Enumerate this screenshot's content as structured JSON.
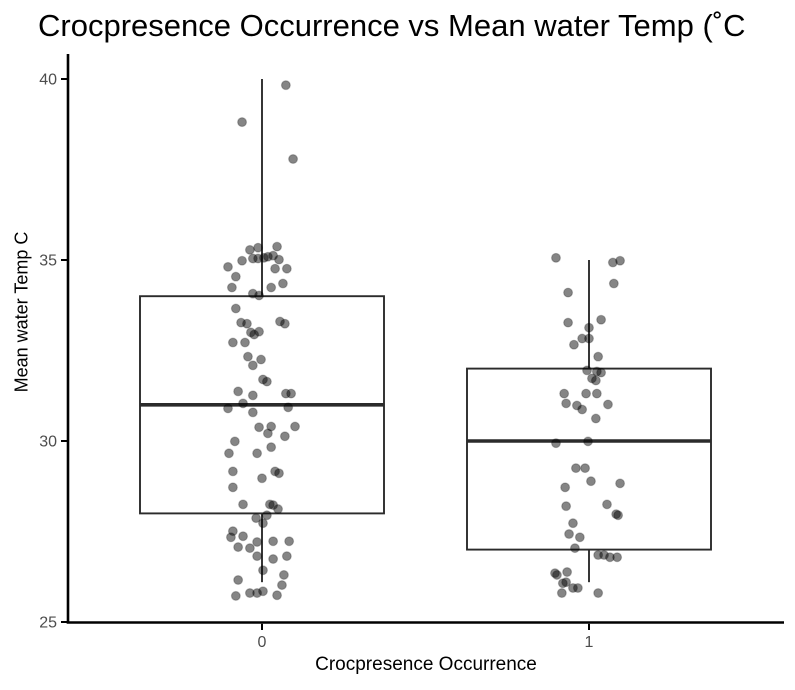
{
  "chart": {
    "title": "Crocpresence Occurrence vs Mean water Temp (˚C",
    "x_axis_label": "Crocpresence Occurrence",
    "y_axis_label": "Mean water Temp C"
  },
  "colors": {
    "background": "#ffffff",
    "axis_line": "#000000",
    "tick_label": "#4d4d4d",
    "box_stroke": "#2b2b2b",
    "box_fill": "#ffffff",
    "point": "#000000"
  },
  "chart_data": {
    "type": "boxplot+jitter",
    "title": "Crocpresence Occurrence vs Mean water Temp (˚C",
    "xlabel": "Crocpresence Occurrence",
    "ylabel": "Mean water Temp C",
    "x_tick_labels": [
      "0",
      "1"
    ],
    "y_ticks": [
      25,
      30,
      35,
      40
    ],
    "ylim": [
      25,
      40.7
    ],
    "grid": false,
    "legend": false,
    "point_style": {
      "opacity": 0.48,
      "radius": 4.4
    },
    "groups": [
      {
        "category": "0",
        "whisker_low": 26.1,
        "q1": 28.0,
        "median": 31.0,
        "q3": 34.0,
        "whisker_high": 40.0,
        "points": [
          [
            0.073,
            39.83
          ],
          [
            -0.061,
            38.81
          ],
          [
            0.095,
            37.79
          ],
          [
            -0.037,
            35.28
          ],
          [
            -0.012,
            35.34
          ],
          [
            0.046,
            35.37
          ],
          [
            -0.028,
            35.04
          ],
          [
            -0.012,
            35.04
          ],
          [
            0.006,
            35.06
          ],
          [
            0.018,
            35.09
          ],
          [
            0.034,
            35.12
          ],
          [
            0.052,
            35.01
          ],
          [
            -0.061,
            34.98
          ],
          [
            -0.104,
            34.81
          ],
          [
            0.04,
            34.76
          ],
          [
            0.076,
            34.76
          ],
          [
            -0.08,
            34.54
          ],
          [
            -0.092,
            34.24
          ],
          [
            0.028,
            34.24
          ],
          [
            0.064,
            34.35
          ],
          [
            -0.028,
            34.07
          ],
          [
            -0.009,
            34.02
          ],
          [
            -0.08,
            33.66
          ],
          [
            -0.064,
            33.27
          ],
          [
            -0.046,
            33.24
          ],
          [
            0.055,
            33.3
          ],
          [
            0.07,
            33.24
          ],
          [
            -0.009,
            33.02
          ],
          [
            -0.034,
            33.0
          ],
          [
            -0.024,
            32.94
          ],
          [
            -0.089,
            32.72
          ],
          [
            -0.052,
            32.72
          ],
          [
            -0.043,
            32.33
          ],
          [
            -0.028,
            32.09
          ],
          [
            -0.003,
            32.25
          ],
          [
            0.003,
            31.7
          ],
          [
            0.015,
            31.64
          ],
          [
            -0.073,
            31.37
          ],
          [
            -0.028,
            31.26
          ],
          [
            0.073,
            31.31
          ],
          [
            0.089,
            31.31
          ],
          [
            -0.058,
            31.04
          ],
          [
            -0.104,
            30.9
          ],
          [
            -0.028,
            30.79
          ],
          [
            0.08,
            30.93
          ],
          [
            -0.009,
            30.38
          ],
          [
            0.028,
            30.4
          ],
          [
            0.101,
            30.4
          ],
          [
            0.018,
            30.21
          ],
          [
            0.07,
            30.13
          ],
          [
            -0.083,
            29.99
          ],
          [
            0.028,
            29.83
          ],
          [
            -0.101,
            29.66
          ],
          [
            -0.015,
            29.66
          ],
          [
            -0.089,
            29.16
          ],
          [
            0.04,
            29.16
          ],
          [
            0.052,
            29.11
          ],
          [
            0.0,
            28.97
          ],
          [
            -0.089,
            28.72
          ],
          [
            -0.058,
            28.25
          ],
          [
            0.024,
            28.25
          ],
          [
            0.034,
            28.23
          ],
          [
            0.049,
            28.12
          ],
          [
            -0.018,
            27.87
          ],
          [
            0.015,
            27.95
          ],
          [
            0.003,
            27.73
          ],
          [
            -0.089,
            27.51
          ],
          [
            -0.058,
            27.37
          ],
          [
            -0.095,
            27.34
          ],
          [
            -0.015,
            27.21
          ],
          [
            0.034,
            27.23
          ],
          [
            0.083,
            27.23
          ],
          [
            -0.073,
            27.07
          ],
          [
            -0.037,
            27.04
          ],
          [
            -0.015,
            26.82
          ],
          [
            0.076,
            26.82
          ],
          [
            0.034,
            26.74
          ],
          [
            0.003,
            26.43
          ],
          [
            0.067,
            26.3
          ],
          [
            -0.073,
            26.16
          ],
          [
            0.061,
            26.02
          ],
          [
            -0.037,
            25.8
          ],
          [
            -0.015,
            25.8
          ],
          [
            0.003,
            25.85
          ],
          [
            -0.08,
            25.72
          ],
          [
            0.046,
            25.74
          ]
        ]
      },
      {
        "category": "1",
        "whisker_low": 26.1,
        "q1": 27.0,
        "median": 30.0,
        "q3": 32.0,
        "whisker_high": 35.0,
        "points": [
          [
            -0.101,
            35.06
          ],
          [
            0.073,
            34.93
          ],
          [
            0.095,
            34.98
          ],
          [
            0.076,
            34.35
          ],
          [
            -0.064,
            34.1
          ],
          [
            -0.064,
            33.27
          ],
          [
            0.037,
            33.35
          ],
          [
            0.0,
            33.13
          ],
          [
            -0.021,
            32.83
          ],
          [
            0.0,
            32.83
          ],
          [
            -0.046,
            32.66
          ],
          [
            0.028,
            32.33
          ],
          [
            -0.006,
            31.95
          ],
          [
            0.024,
            31.92
          ],
          [
            0.037,
            31.89
          ],
          [
            0.009,
            31.73
          ],
          [
            0.021,
            31.67
          ],
          [
            -0.076,
            31.31
          ],
          [
            -0.009,
            31.31
          ],
          [
            0.024,
            31.31
          ],
          [
            -0.07,
            31.04
          ],
          [
            -0.037,
            30.98
          ],
          [
            -0.021,
            30.87
          ],
          [
            0.058,
            31.01
          ],
          [
            0.021,
            30.62
          ],
          [
            -0.101,
            29.94
          ],
          [
            -0.003,
            29.99
          ],
          [
            -0.04,
            29.25
          ],
          [
            -0.012,
            29.25
          ],
          [
            0.006,
            28.89
          ],
          [
            0.095,
            28.83
          ],
          [
            -0.073,
            28.72
          ],
          [
            -0.07,
            28.2
          ],
          [
            0.055,
            28.25
          ],
          [
            0.083,
            27.98
          ],
          [
            0.089,
            27.95
          ],
          [
            -0.049,
            27.73
          ],
          [
            -0.061,
            27.43
          ],
          [
            -0.028,
            27.34
          ],
          [
            -0.043,
            27.04
          ],
          [
            0.028,
            26.85
          ],
          [
            0.046,
            26.85
          ],
          [
            0.064,
            26.79
          ],
          [
            0.086,
            26.79
          ],
          [
            -0.104,
            26.35
          ],
          [
            -0.067,
            26.38
          ],
          [
            -0.098,
            26.3
          ],
          [
            -0.07,
            26.1
          ],
          [
            -0.08,
            26.07
          ],
          [
            -0.049,
            25.94
          ],
          [
            -0.034,
            25.94
          ],
          [
            -0.083,
            25.8
          ],
          [
            0.028,
            25.8
          ]
        ]
      }
    ]
  }
}
